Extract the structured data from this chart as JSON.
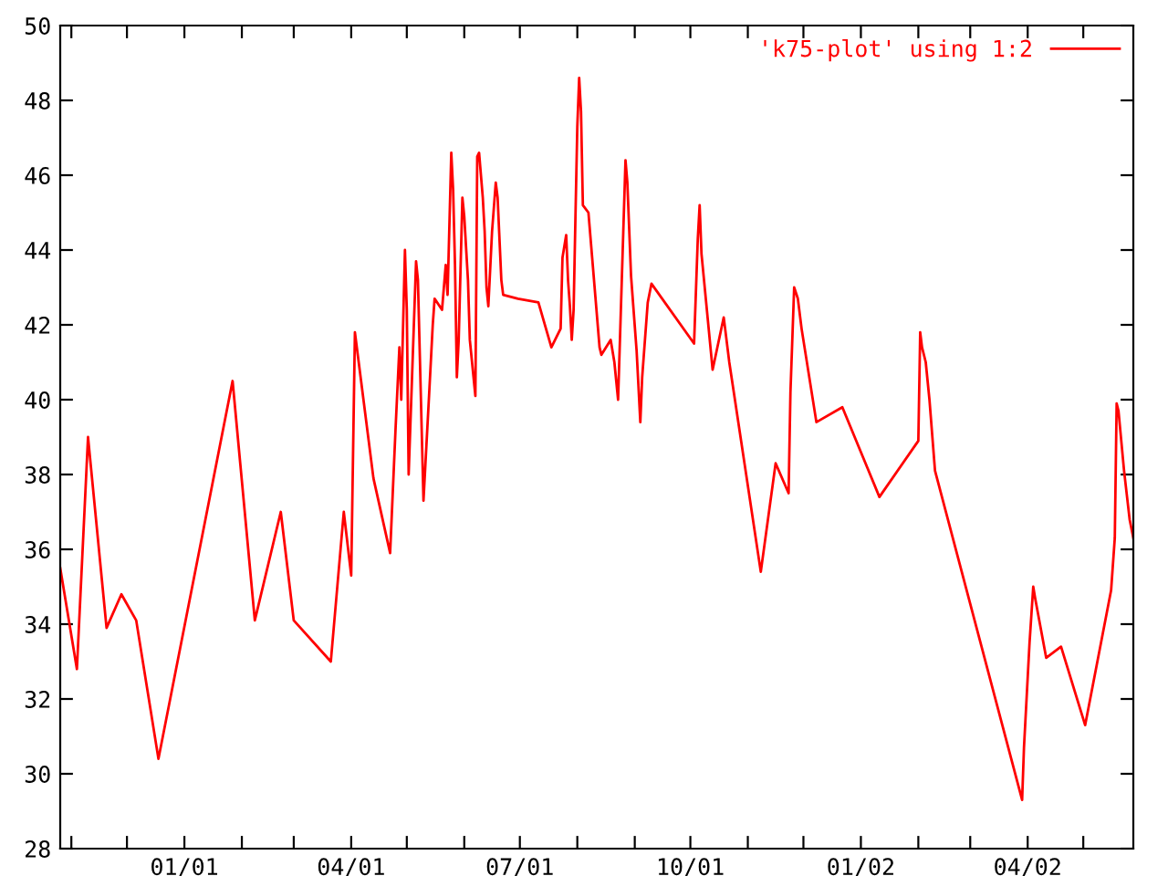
{
  "chart_data": {
    "type": "line",
    "legend": "top right",
    "grid": false,
    "marker": "none",
    "line_style": "solid",
    "xlim": [
      "2000-10-26",
      "2002-05-28"
    ],
    "ylim": [
      28,
      50
    ],
    "yticks": [
      28,
      30,
      32,
      34,
      36,
      38,
      40,
      42,
      44,
      46,
      48,
      50
    ],
    "xticks": [
      {
        "value": "2000-11-01",
        "label": null
      },
      {
        "value": "2000-12-01",
        "label": null
      },
      {
        "value": "2001-01-01",
        "label": "01/01"
      },
      {
        "value": "2001-02-01",
        "label": null
      },
      {
        "value": "2001-03-01",
        "label": null
      },
      {
        "value": "2001-04-01",
        "label": "04/01"
      },
      {
        "value": "2001-05-01",
        "label": null
      },
      {
        "value": "2001-06-01",
        "label": null
      },
      {
        "value": "2001-07-01",
        "label": "07/01"
      },
      {
        "value": "2001-08-01",
        "label": null
      },
      {
        "value": "2001-09-01",
        "label": null
      },
      {
        "value": "2001-10-01",
        "label": "10/01"
      },
      {
        "value": "2001-11-01",
        "label": null
      },
      {
        "value": "2001-12-01",
        "label": null
      },
      {
        "value": "2002-01-01",
        "label": "01/02"
      },
      {
        "value": "2002-02-01",
        "label": null
      },
      {
        "value": "2002-03-01",
        "label": null
      },
      {
        "value": "2002-04-01",
        "label": "04/02"
      },
      {
        "value": "2002-05-01",
        "label": null
      }
    ],
    "x": [
      "2000-10-26",
      "2000-11-04",
      "2000-11-10",
      "2000-11-20",
      "2000-11-28",
      "2000-12-06",
      "2000-12-18",
      "2001-01-27",
      "2001-02-08",
      "2001-02-22",
      "2001-03-01",
      "2001-03-21",
      "2001-03-28",
      "2001-04-01",
      "2001-04-03",
      "2001-04-13",
      "2001-04-22",
      "2001-04-25",
      "2001-04-27",
      "2001-04-28",
      "2001-04-30",
      "2001-05-01",
      "2001-05-02",
      "2001-05-06",
      "2001-05-07",
      "2001-05-10",
      "2001-05-13",
      "2001-05-15",
      "2001-05-16",
      "2001-05-20",
      "2001-05-22",
      "2001-05-23",
      "2001-05-25",
      "2001-05-26",
      "2001-05-27",
      "2001-05-28",
      "2001-05-29",
      "2001-05-31",
      "2001-06-01",
      "2001-06-03",
      "2001-06-04",
      "2001-06-07",
      "2001-06-08",
      "2001-06-09",
      "2001-06-11",
      "2001-06-12",
      "2001-06-13",
      "2001-06-14",
      "2001-06-16",
      "2001-06-18",
      "2001-06-19",
      "2001-06-21",
      "2001-06-22",
      "2001-06-30",
      "2001-07-11",
      "2001-07-18",
      "2001-07-23",
      "2001-07-24",
      "2001-07-26",
      "2001-07-27",
      "2001-07-28",
      "2001-07-29",
      "2001-07-30",
      "2001-07-31",
      "2001-08-01",
      "2001-08-02",
      "2001-08-03",
      "2001-08-04",
      "2001-08-07",
      "2001-08-09",
      "2001-08-13",
      "2001-08-14",
      "2001-08-19",
      "2001-08-21",
      "2001-08-23",
      "2001-08-25",
      "2001-08-27",
      "2001-08-28",
      "2001-08-30",
      "2001-09-02",
      "2001-09-04",
      "2001-09-05",
      "2001-09-08",
      "2001-09-10",
      "2001-10-03",
      "2001-10-05",
      "2001-10-06",
      "2001-10-07",
      "2001-10-13",
      "2001-10-19",
      "2001-10-22",
      "2001-11-08",
      "2001-11-16",
      "2001-11-23",
      "2001-11-24",
      "2001-11-26",
      "2001-11-28",
      "2001-11-30",
      "2001-12-08",
      "2001-12-22",
      "2002-01-11",
      "2002-02-01",
      "2002-02-02",
      "2002-02-03",
      "2002-02-05",
      "2002-02-07",
      "2002-02-10",
      "2002-03-29",
      "2002-03-30",
      "2002-04-02",
      "2002-04-04",
      "2002-04-05",
      "2002-04-11",
      "2002-04-19",
      "2002-05-02",
      "2002-05-16",
      "2002-05-18",
      "2002-05-19",
      "2002-05-20",
      "2002-05-23",
      "2002-05-26",
      "2002-05-28"
    ],
    "series": [
      {
        "name": "'k75-plot' using 1:2",
        "color": "#ff0000",
        "values": [
          35.5,
          32.8,
          39.0,
          33.9,
          34.8,
          34.1,
          30.4,
          40.5,
          34.1,
          37.0,
          34.1,
          33.0,
          37.0,
          35.3,
          41.8,
          37.9,
          35.9,
          39.3,
          41.4,
          40.0,
          44.0,
          42.4,
          38.0,
          43.7,
          43.2,
          37.3,
          40.1,
          42.0,
          42.7,
          42.4,
          43.6,
          42.8,
          46.6,
          45.6,
          43.6,
          40.6,
          41.6,
          45.4,
          44.9,
          43.2,
          41.6,
          40.1,
          46.5,
          46.6,
          45.4,
          44.5,
          43.0,
          42.5,
          44.5,
          45.8,
          45.4,
          43.2,
          42.8,
          42.7,
          42.6,
          41.4,
          41.9,
          43.8,
          44.4,
          43.2,
          42.5,
          41.6,
          42.4,
          44.9,
          47.3,
          48.6,
          47.7,
          45.2,
          45.0,
          43.8,
          41.4,
          41.2,
          41.6,
          41.0,
          40.0,
          43.2,
          46.4,
          45.8,
          43.3,
          41.3,
          39.4,
          40.6,
          42.6,
          43.1,
          41.5,
          44.3,
          45.2,
          43.9,
          40.8,
          42.2,
          41.0,
          35.4,
          38.3,
          37.5,
          40.2,
          43.0,
          42.7,
          41.9,
          39.4,
          39.8,
          37.4,
          38.9,
          41.8,
          41.4,
          41.0,
          40.0,
          38.1,
          29.3,
          30.7,
          33.5,
          35.0,
          34.7,
          33.1,
          33.4,
          31.3,
          34.9,
          36.3,
          39.9,
          39.7,
          38.1,
          36.8,
          36.3
        ]
      }
    ]
  }
}
